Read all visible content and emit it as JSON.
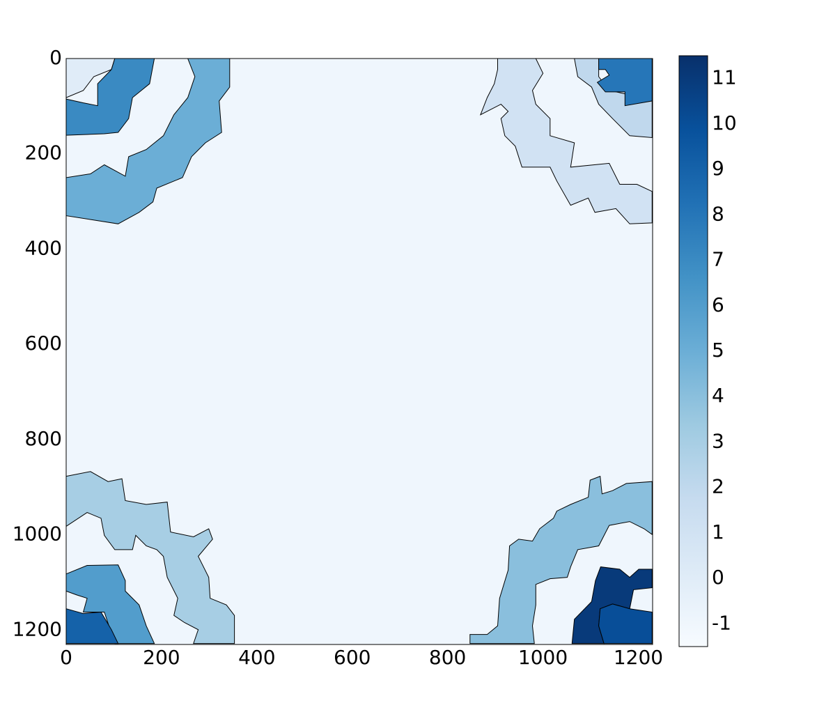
{
  "chart_data": {
    "type": "label-image",
    "xlim": [
      0,
      1230
    ],
    "ylim": [
      0,
      1230
    ],
    "y_inverted": true,
    "xticks": [
      0,
      200,
      400,
      600,
      800,
      1000,
      1200
    ],
    "yticks": [
      0,
      200,
      400,
      600,
      800,
      1000,
      1200
    ],
    "colormap": [
      "#f7fbff",
      "#deebf7",
      "#c6dbef",
      "#9ecae1",
      "#6baed6",
      "#4292c6",
      "#2171b5",
      "#08519c",
      "#08306b"
    ],
    "clim": [
      -1.5,
      11.5
    ],
    "colorbar_ticks": [
      -1,
      0,
      1,
      2,
      3,
      4,
      5,
      6,
      7,
      8,
      9,
      10,
      11
    ],
    "background_value": -1,
    "regions": [
      {
        "value": 0,
        "points": [
          [
            0,
            0
          ],
          [
            102,
            0
          ],
          [
            95,
            23
          ],
          [
            58,
            38
          ],
          [
            36,
            67
          ],
          [
            0,
            82
          ]
        ]
      },
      {
        "value": 7,
        "points": [
          [
            102,
            0
          ],
          [
            185,
            0
          ],
          [
            175,
            53
          ],
          [
            139,
            82
          ],
          [
            131,
            126
          ],
          [
            109,
            155
          ],
          [
            80,
            158
          ],
          [
            0,
            161
          ],
          [
            0,
            85
          ],
          [
            36,
            93
          ],
          [
            66,
            99
          ],
          [
            66,
            53
          ],
          [
            95,
            23
          ]
        ]
      },
      {
        "value": 5,
        "points": [
          [
            255,
            0
          ],
          [
            343,
            0
          ],
          [
            343,
            60
          ],
          [
            321,
            89
          ],
          [
            326,
            155
          ],
          [
            292,
            177
          ],
          [
            263,
            206
          ],
          [
            244,
            250
          ],
          [
            190,
            272
          ],
          [
            182,
            301
          ],
          [
            153,
            323
          ],
          [
            109,
            347
          ],
          [
            0,
            330
          ],
          [
            0,
            250
          ],
          [
            51,
            242
          ],
          [
            80,
            223
          ],
          [
            124,
            247
          ],
          [
            131,
            206
          ],
          [
            168,
            191
          ],
          [
            204,
            162
          ],
          [
            226,
            118
          ],
          [
            255,
            82
          ],
          [
            270,
            38
          ]
        ]
      },
      {
        "value": 1,
        "points": [
          [
            905,
            0
          ],
          [
            985,
            0
          ],
          [
            1000,
            31
          ],
          [
            978,
            67
          ],
          [
            985,
            96
          ],
          [
            1015,
            126
          ],
          [
            1015,
            162
          ],
          [
            1066,
            177
          ],
          [
            1058,
            228
          ],
          [
            1139,
            220
          ],
          [
            1161,
            264
          ],
          [
            1197,
            264
          ],
          [
            1229,
            279
          ],
          [
            1229,
            345
          ],
          [
            1182,
            347
          ],
          [
            1153,
            315
          ],
          [
            1109,
            323
          ],
          [
            1095,
            293
          ],
          [
            1058,
            308
          ],
          [
            1029,
            257
          ],
          [
            1015,
            228
          ],
          [
            956,
            228
          ],
          [
            942,
            184
          ],
          [
            920,
            162
          ],
          [
            912,
            126
          ],
          [
            927,
            111
          ],
          [
            912,
            96
          ],
          [
            869,
            118
          ],
          [
            883,
            82
          ],
          [
            898,
            53
          ],
          [
            905,
            23
          ]
        ]
      },
      {
        "value": 2,
        "points": [
          [
            1066,
            0
          ],
          [
            1117,
            0
          ],
          [
            1117,
            38
          ],
          [
            1139,
            67
          ],
          [
            1172,
            74
          ],
          [
            1175,
            96
          ],
          [
            1229,
            88
          ],
          [
            1229,
            166
          ],
          [
            1182,
            162
          ],
          [
            1146,
            126
          ],
          [
            1117,
            96
          ],
          [
            1102,
            60
          ],
          [
            1073,
            38
          ]
        ]
      },
      {
        "value": 8,
        "points": [
          [
            1117,
            0
          ],
          [
            1229,
            0
          ],
          [
            1229,
            89
          ],
          [
            1172,
            99
          ],
          [
            1172,
            70
          ],
          [
            1131,
            70
          ],
          [
            1114,
            50
          ],
          [
            1139,
            35
          ],
          [
            1131,
            23
          ],
          [
            1117,
            23
          ]
        ]
      },
      {
        "value": 3,
        "points": [
          [
            0,
            877
          ],
          [
            51,
            867
          ],
          [
            88,
            888
          ],
          [
            117,
            882
          ],
          [
            124,
            928
          ],
          [
            168,
            936
          ],
          [
            212,
            931
          ],
          [
            219,
            994
          ],
          [
            267,
            1004
          ],
          [
            299,
            987
          ],
          [
            307,
            1009
          ],
          [
            277,
            1045
          ],
          [
            299,
            1089
          ],
          [
            302,
            1133
          ],
          [
            336,
            1147
          ],
          [
            353,
            1169
          ],
          [
            353,
            1228
          ],
          [
            267,
            1228
          ],
          [
            277,
            1199
          ],
          [
            248,
            1184
          ],
          [
            226,
            1169
          ],
          [
            234,
            1133
          ],
          [
            212,
            1089
          ],
          [
            204,
            1045
          ],
          [
            190,
            1031
          ],
          [
            168,
            1023
          ],
          [
            146,
            1001
          ],
          [
            139,
            1031
          ],
          [
            102,
            1031
          ],
          [
            80,
            1001
          ],
          [
            73,
            965
          ],
          [
            44,
            953
          ],
          [
            0,
            982
          ]
        ]
      },
      {
        "value": 6,
        "points": [
          [
            0,
            1082
          ],
          [
            44,
            1064
          ],
          [
            109,
            1063
          ],
          [
            124,
            1096
          ],
          [
            124,
            1118
          ],
          [
            153,
            1147
          ],
          [
            168,
            1191
          ],
          [
            185,
            1228
          ],
          [
            102,
            1228
          ],
          [
            80,
            1162
          ],
          [
            36,
            1162
          ],
          [
            44,
            1133
          ],
          [
            22,
            1126
          ],
          [
            0,
            1118
          ]
        ]
      },
      {
        "value": 9,
        "points": [
          [
            0,
            1155
          ],
          [
            36,
            1165
          ],
          [
            73,
            1162
          ],
          [
            95,
            1199
          ],
          [
            109,
            1228
          ],
          [
            0,
            1228
          ]
        ]
      },
      {
        "value": 4,
        "points": [
          [
            847,
            1228
          ],
          [
            847,
            1209
          ],
          [
            883,
            1209
          ],
          [
            905,
            1191
          ],
          [
            909,
            1133
          ],
          [
            927,
            1074
          ],
          [
            930,
            1023
          ],
          [
            949,
            1009
          ],
          [
            978,
            1013
          ],
          [
            993,
            987
          ],
          [
            1022,
            965
          ],
          [
            1029,
            950
          ],
          [
            1058,
            936
          ],
          [
            1095,
            921
          ],
          [
            1099,
            885
          ],
          [
            1120,
            877
          ],
          [
            1124,
            914
          ],
          [
            1146,
            907
          ],
          [
            1175,
            892
          ],
          [
            1229,
            888
          ],
          [
            1229,
            999
          ],
          [
            1212,
            987
          ],
          [
            1182,
            972
          ],
          [
            1139,
            980
          ],
          [
            1117,
            1023
          ],
          [
            1073,
            1031
          ],
          [
            1058,
            1067
          ],
          [
            1051,
            1089
          ],
          [
            1015,
            1092
          ],
          [
            985,
            1104
          ],
          [
            985,
            1147
          ],
          [
            978,
            1191
          ],
          [
            982,
            1228
          ]
        ]
      },
      {
        "value": 11,
        "points": [
          [
            1061,
            1228
          ],
          [
            1066,
            1177
          ],
          [
            1102,
            1140
          ],
          [
            1110,
            1096
          ],
          [
            1121,
            1067
          ],
          [
            1161,
            1072
          ],
          [
            1182,
            1089
          ],
          [
            1201,
            1072
          ],
          [
            1229,
            1072
          ],
          [
            1229,
            1111
          ],
          [
            1190,
            1115
          ],
          [
            1182,
            1155
          ],
          [
            1146,
            1145
          ],
          [
            1120,
            1155
          ],
          [
            1117,
            1191
          ],
          [
            1128,
            1228
          ]
        ]
      },
      {
        "value": 10,
        "points": [
          [
            1128,
            1228
          ],
          [
            1117,
            1191
          ],
          [
            1120,
            1155
          ],
          [
            1146,
            1145
          ],
          [
            1182,
            1155
          ],
          [
            1229,
            1162
          ],
          [
            1229,
            1228
          ]
        ]
      }
    ]
  }
}
